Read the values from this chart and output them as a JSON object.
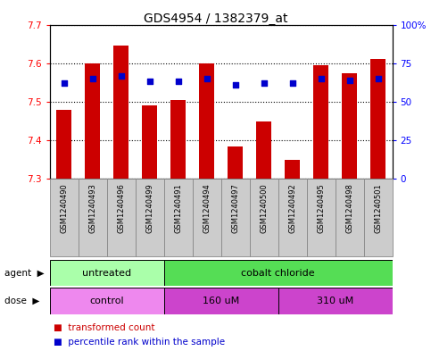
{
  "title": "GDS4954 / 1382379_at",
  "samples": [
    "GSM1240490",
    "GSM1240493",
    "GSM1240496",
    "GSM1240499",
    "GSM1240491",
    "GSM1240494",
    "GSM1240497",
    "GSM1240500",
    "GSM1240492",
    "GSM1240495",
    "GSM1240498",
    "GSM1240501"
  ],
  "bar_values": [
    7.48,
    7.6,
    7.645,
    7.49,
    7.505,
    7.6,
    7.385,
    7.45,
    7.35,
    7.595,
    7.575,
    7.61
  ],
  "bar_bottom": 7.3,
  "percentile_values": [
    62,
    65,
    67,
    63,
    63,
    65,
    61,
    62,
    62,
    65,
    64,
    65
  ],
  "ylim_left": [
    7.3,
    7.7
  ],
  "ylim_right": [
    0,
    100
  ],
  "yticks_left": [
    7.3,
    7.4,
    7.5,
    7.6,
    7.7
  ],
  "yticks_right": [
    0,
    25,
    50,
    75,
    100
  ],
  "ytick_labels_right": [
    "0",
    "25",
    "50",
    "75",
    "100%"
  ],
  "bar_color": "#cc0000",
  "dot_color": "#0000cc",
  "agent_groups": [
    {
      "label": "untreated",
      "start": 0,
      "end": 4,
      "color": "#aaffaa"
    },
    {
      "label": "cobalt chloride",
      "start": 4,
      "end": 12,
      "color": "#55dd55"
    }
  ],
  "dose_groups": [
    {
      "label": "control",
      "start": 0,
      "end": 4,
      "color": "#ee88ee"
    },
    {
      "label": "160 uM",
      "start": 4,
      "end": 8,
      "color": "#cc44cc"
    },
    {
      "label": "310 uM",
      "start": 8,
      "end": 12,
      "color": "#cc44cc"
    }
  ],
  "legend_bar_label": "transformed count",
  "legend_dot_label": "percentile rank within the sample",
  "bar_color_label": "#cc0000",
  "dot_color_label": "#0000cc",
  "bar_width": 0.55,
  "title_fontsize": 10,
  "tick_fontsize": 7.5,
  "label_fontsize": 8,
  "sample_box_color": "#cccccc",
  "sample_box_border": "#888888"
}
